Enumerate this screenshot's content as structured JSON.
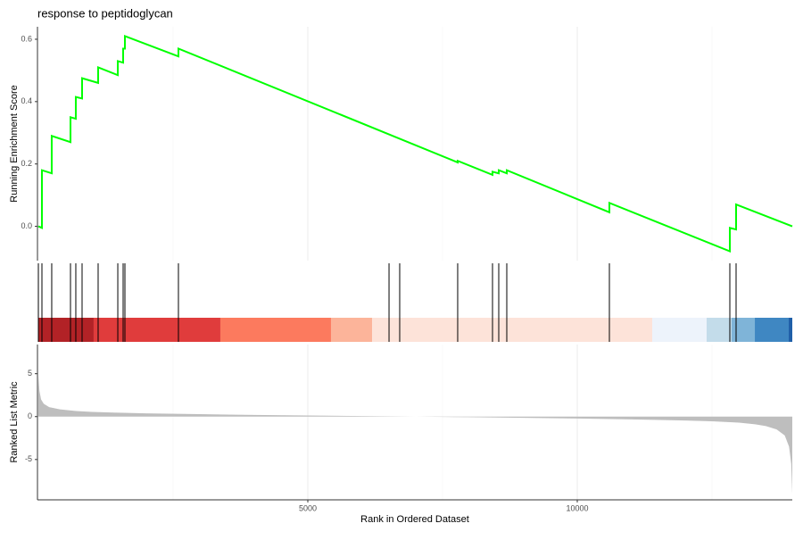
{
  "chart_data": [
    {
      "type": "line",
      "title": "response to peptidoglycan",
      "ylabel": "Running Enrichment Score",
      "x": [
        0,
        66,
        66,
        248,
        248,
        596,
        596,
        695,
        695,
        811,
        811,
        1109,
        1109,
        1474,
        1474,
        1573,
        1573,
        1606,
        1606,
        2599,
        2599,
        6507,
        7781,
        7781,
        8427,
        8427,
        8543,
        8543,
        8692,
        8692,
        10596,
        10596,
        12831,
        12831,
        12947,
        12947,
        13990
      ],
      "values": [
        0,
        -0.005,
        0.18,
        0.17,
        0.29,
        0.27,
        0.35,
        0.345,
        0.415,
        0.41,
        0.475,
        0.46,
        0.51,
        0.485,
        0.53,
        0.525,
        0.57,
        0.57,
        0.61,
        0.545,
        0.57,
        0.295,
        0.205,
        0.21,
        0.165,
        0.175,
        0.17,
        0.18,
        0.17,
        0.18,
        0.045,
        0.075,
        -0.08,
        -0.005,
        -0.01,
        0.07,
        0.0
      ],
      "color": "#00ff00",
      "xlim": [
        0,
        13990
      ],
      "ylim": [
        -0.11,
        0.64
      ],
      "yticks": [
        {
          "value": 0,
          "label": "0.0"
        },
        {
          "value": 0.2,
          "label": "0.2"
        },
        {
          "value": 0.4,
          "label": "0.4"
        },
        {
          "value": 0.6,
          "label": "0.6"
        }
      ]
    },
    {
      "type": "rug",
      "x": [
        0,
        66,
        248,
        596,
        695,
        811,
        1109,
        1474,
        1573,
        1606,
        2599,
        6507,
        6705,
        7781,
        8427,
        8543,
        8692,
        10596,
        12831,
        12947
      ],
      "color": "#000000",
      "xlim": [
        0,
        13990
      ],
      "band_edges": [
        0,
        1026,
        3377,
        5430,
        6192,
        11391,
        12401,
        12864,
        13295,
        13924,
        13990
      ],
      "band_colors": [
        "#b22226",
        "#e03c3c",
        "#fc7a5e",
        "#fcb49a",
        "#fde3d9",
        "#edf3fb",
        "#c3dcea",
        "#7fb4d8",
        "#3f87c2",
        "#1f5fa8"
      ]
    },
    {
      "type": "area",
      "xlabel": "Rank in Ordered Dataset",
      "ylabel": "Ranked List Metric",
      "x": [
        0,
        20,
        50,
        100,
        200,
        400,
        700,
        1000,
        1500,
        2000,
        3000,
        4000,
        5000,
        6000,
        7000,
        8000,
        9000,
        10000,
        11000,
        12000,
        12500,
        13000,
        13300,
        13500,
        13700,
        13850,
        13930,
        13970,
        13990
      ],
      "values": [
        4.8,
        3.0,
        2.0,
        1.5,
        1.1,
        0.85,
        0.65,
        0.55,
        0.45,
        0.38,
        0.28,
        0.2,
        0.13,
        0.06,
        0,
        -0.07,
        -0.14,
        -0.22,
        -0.32,
        -0.45,
        -0.55,
        -0.7,
        -0.9,
        -1.1,
        -1.5,
        -2.2,
        -3.5,
        -5.5,
        -9.0
      ],
      "color": "#bebebe",
      "xlim": [
        0,
        13990
      ],
      "ylim": [
        -9.7,
        8.4
      ],
      "xticks": [
        5000,
        10000
      ],
      "xminor": [
        2500,
        7500,
        12500
      ],
      "yticks": [
        -5,
        0,
        5
      ]
    }
  ]
}
